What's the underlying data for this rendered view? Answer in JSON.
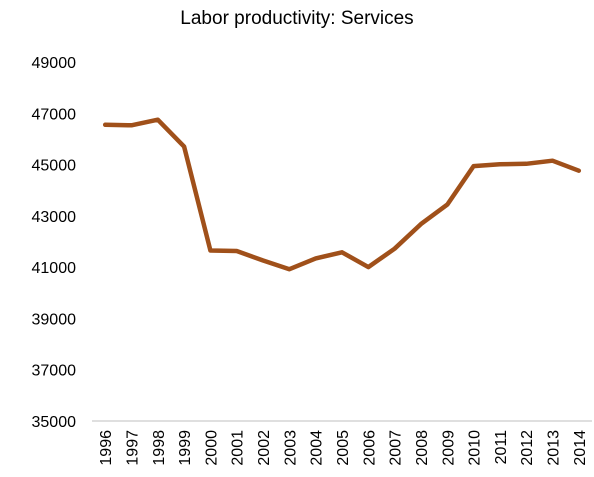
{
  "chart_data": {
    "type": "line",
    "title": "Labor productivity: Services",
    "xlabel": "",
    "ylabel": "",
    "ylim": [
      35000,
      49000
    ],
    "yticks": [
      35000,
      37000,
      39000,
      41000,
      43000,
      45000,
      47000,
      49000
    ],
    "grid": false,
    "legend": "none",
    "categories": [
      "1996",
      "1997",
      "1998",
      "1999",
      "2000",
      "2001",
      "2002",
      "2003",
      "2004",
      "2005",
      "2006",
      "2007",
      "2008",
      "2009",
      "2010",
      "2011",
      "2012",
      "2013",
      "2014"
    ],
    "series": [
      {
        "color": "#A0501A",
        "values": [
          46550,
          46530,
          46750,
          45700,
          41650,
          41630,
          41260,
          40920,
          41340,
          41580,
          41000,
          41720,
          42680,
          43440,
          44940,
          45010,
          45030,
          45150,
          44760
        ]
      }
    ]
  }
}
